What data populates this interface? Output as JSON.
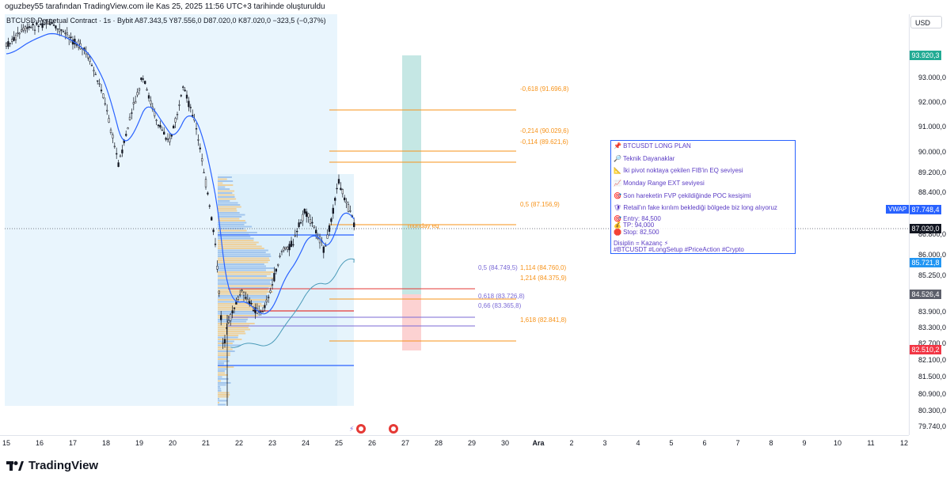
{
  "header": {
    "snapshot_credit": "oguzbey55 tarafından TradingView.com ile Kas 25, 2025 11:56 UTC+3 tarihinde oluşturuldu"
  },
  "symbol_line": "BTCUSD Perpetual Contract · 1s · Bybit   A87.343,5  Y87.556,0  D87.020,0  K87.020,0  −323,5 (−0,37%)",
  "currency_button": "USD",
  "price_axis": {
    "ticks": [
      "93.000,0",
      "92.000,0",
      "91.000,0",
      "90.000,0",
      "89.200,0",
      "88.400,0",
      "86.800,0",
      "86.000,0",
      "85.250,0",
      "83.900,0",
      "83.300,0",
      "82.700,0",
      "82.100,0",
      "81.500,0",
      "80.900,0",
      "80.300,0",
      "79.740,0"
    ],
    "labels": {
      "top": "93.920,3",
      "vwap_value": "87.748,4",
      "current": "87.020,0",
      "ma": "85.721,8",
      "gray": "84.526,4",
      "stop": "82.510,2"
    },
    "vwap_name": "VWAP"
  },
  "time_axis": [
    "15",
    "16",
    "17",
    "18",
    "19",
    "20",
    "21",
    "22",
    "23",
    "24",
    "25",
    "26",
    "27",
    "28",
    "29",
    "30",
    "Ara",
    "2",
    "3",
    "4",
    "5",
    "6",
    "7",
    "8",
    "9",
    "10",
    "11",
    "12"
  ],
  "fib_labels": {
    "f1": "-0,618 (91.696,8)",
    "f2": "-0,214 (90.029,6)",
    "f3": "-0,114 (89.621,6)",
    "f4": "0,5 (87.156,9)",
    "f5": "0,5 (84.749,5)",
    "f6": "1,114 (84.760,0)",
    "f7": "1,214 (84.375,9)",
    "f8": "0,618 (83.726,8)",
    "f9": "0,66 (83.365,8)",
    "f10": "1,618 (82.841,8)",
    "monday_eq": "monday eq"
  },
  "note": {
    "title": "📌 BTCUSDT LONG PLAN",
    "l1": "🔎 Teknik Dayanaklar",
    "l2": "📐 İki pivot noktaya çekilen FIB'in EQ seviyesi",
    "l3": "📈 Monday Range EXT seviyesi",
    "l4": "🎯 Son hareketin FVP çekildiğinde POC kesişimi",
    "l5": "🛡 Retail'ın fake kırılım beklediği bölgede biz long alıyoruz",
    "entry": "🎯 Entry: 84,500",
    "tp": "💰 TP: 94,000",
    "stop": "🛑 Stop: 82,500",
    "l6": "Disiplin = Kazanç ⚡",
    "tags": "#BTCUSDT #LongSetup #PriceAction #Crypto"
  },
  "brand": "TradingView",
  "colors": {
    "up": "#ffffff",
    "down": "#131722",
    "vwap": "#2962ff",
    "ma": "#4a9ab8",
    "fib_orange": "#f7931a",
    "fib_red": "#e53935",
    "fib_purple": "#7b6ad6",
    "current_label": "#131722",
    "top_label": "#22ab94",
    "stop_label": "#f23645",
    "gray_label": "#5d606b",
    "ma_label": "#2196f3"
  }
}
